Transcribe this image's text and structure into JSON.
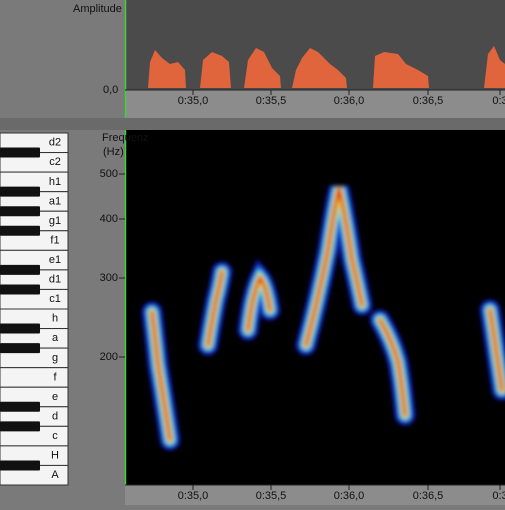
{
  "amplitude_panel": {
    "label": "Amplitude",
    "zero_label": "0,0",
    "time_ticks": [
      "0:35,0",
      "0:35,5",
      "0:36,0",
      "0:36,5",
      "0:3"
    ]
  },
  "spectrogram_panel": {
    "label": "Frequenz",
    "unit": "(Hz)",
    "freq_ticks": [
      "500",
      "400",
      "300",
      "200"
    ],
    "time_ticks": [
      "0:35,0",
      "0:35,5",
      "0:36,0",
      "0:36,5",
      "0:3"
    ]
  },
  "piano": {
    "keys": [
      "d2",
      "c2",
      "h1",
      "a1",
      "g1",
      "f1",
      "e1",
      "d1",
      "c1",
      "h",
      "a",
      "g",
      "f",
      "e",
      "d",
      "c",
      "H",
      "A"
    ]
  }
}
